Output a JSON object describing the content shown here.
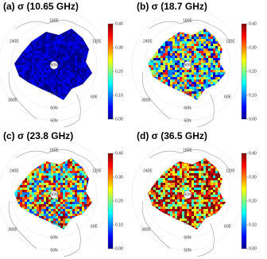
{
  "panels": [
    {
      "title": "(a) σ (10.65 GHz)"
    },
    {
      "title": "(b) σ (18.7 GHz)"
    },
    {
      "title": "(c) σ (23.8 GHz)"
    },
    {
      "title": "(d) σ (36.5 GHz)"
    }
  ],
  "map_labels": {
    "lon": [
      "180E",
      "240E",
      "120E",
      "300E",
      "60E"
    ],
    "lat": [
      "90N",
      "70N",
      "60N",
      "50N"
    ]
  },
  "colorbar": {
    "lim": [
      0,
      0.4
    ],
    "ticks": [
      {
        "value": 0,
        "label": "0.00"
      },
      {
        "value": 0.1,
        "label": "0.10"
      },
      {
        "value": 0.2,
        "label": "0.20"
      },
      {
        "value": 0.3,
        "label": "0.30"
      },
      {
        "value": 0.4,
        "label": "0.40"
      }
    ]
  }
}
